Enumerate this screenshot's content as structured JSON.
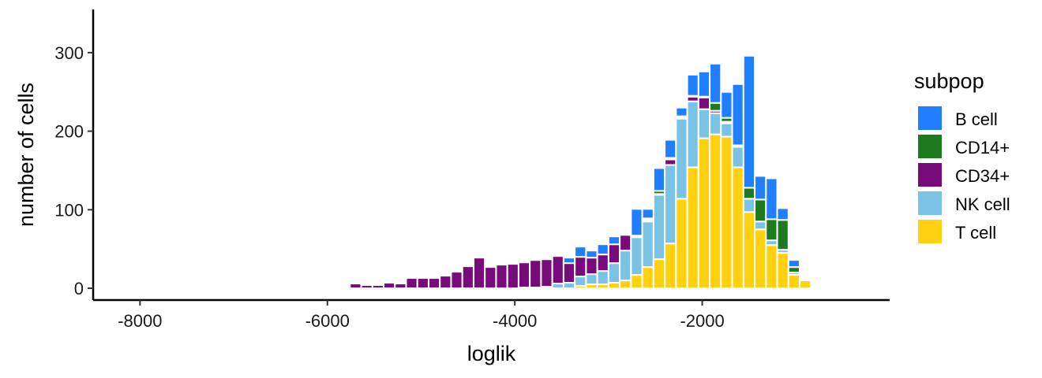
{
  "chart_data": {
    "type": "bar",
    "stacked": true,
    "xlabel": "loglik",
    "ylabel": "number of cells",
    "xlim": [
      -8500,
      0
    ],
    "ylim": [
      -15,
      355
    ],
    "xticks": [
      -8000,
      -6000,
      -4000,
      -2000
    ],
    "xtick_labels": [
      "-8000",
      "-6000",
      "-4000",
      "-2000"
    ],
    "yticks": [
      0,
      100,
      200,
      300
    ],
    "ytick_labels": [
      "0",
      "100",
      "200",
      "300"
    ],
    "bin_width": 120,
    "x": [
      -5820,
      -5700,
      -5580,
      -5460,
      -5340,
      -5220,
      -5100,
      -4980,
      -4860,
      -4740,
      -4620,
      -4500,
      -4380,
      -4260,
      -4140,
      -4020,
      -3900,
      -3780,
      -3660,
      -3540,
      -3420,
      -3300,
      -3180,
      -3060,
      -2940,
      -2820,
      -2700,
      -2580,
      -2460,
      -2340,
      -2220,
      -2100,
      -1980,
      -1860,
      -1740,
      -1620,
      -1500,
      -1380,
      -1260,
      -1140,
      -1020,
      -900
    ],
    "series": [
      {
        "name": "T cell",
        "color": "#FFD10F",
        "values": [
          0,
          0,
          0,
          0,
          0,
          0,
          0,
          0,
          0,
          0,
          0,
          0,
          0,
          0,
          0,
          0,
          0,
          0,
          0,
          0,
          0,
          3,
          5,
          5,
          7,
          10,
          17,
          27,
          37,
          57,
          114,
          154,
          191,
          196,
          193,
          154,
          97,
          75,
          55,
          45,
          17,
          10
        ]
      },
      {
        "name": "NK cell",
        "color": "#7BC3E5",
        "values": [
          0,
          0,
          0,
          0,
          0,
          0,
          0,
          0,
          0,
          0,
          0,
          0,
          0,
          0,
          0,
          0,
          1,
          1,
          2,
          6,
          7,
          12,
          13,
          17,
          25,
          38,
          48,
          58,
          82,
          100,
          102,
          84,
          37,
          27,
          17,
          26,
          17,
          10,
          6,
          4,
          3,
          2
        ]
      },
      {
        "name": "CD34+",
        "color": "#760B79",
        "values": [
          2,
          6,
          4,
          4,
          7,
          6,
          13,
          13,
          13,
          16,
          21,
          28,
          39,
          27,
          30,
          31,
          32,
          35,
          35,
          35,
          25,
          25,
          21,
          21,
          24,
          20,
          2,
          2,
          1,
          7,
          2,
          6,
          15,
          3,
          2,
          0,
          0,
          0,
          0,
          0,
          0,
          0
        ]
      },
      {
        "name": "CD14+",
        "color": "#1E7A1E",
        "values": [
          0,
          0,
          0,
          0,
          0,
          0,
          0,
          0,
          0,
          0,
          0,
          0,
          0,
          0,
          0,
          0,
          0,
          1,
          1,
          0,
          0,
          0,
          0,
          0,
          0,
          0,
          0,
          2,
          4,
          2,
          1,
          1,
          1,
          10,
          5,
          2,
          14,
          28,
          27,
          38,
          7,
          2
        ]
      },
      {
        "name": "B cell",
        "color": "#1F7FFF",
        "values": [
          0,
          0,
          0,
          0,
          0,
          0,
          0,
          0,
          0,
          0,
          0,
          0,
          0,
          0,
          0,
          0,
          1,
          0,
          0,
          0,
          7,
          13,
          9,
          13,
          10,
          1,
          34,
          12,
          29,
          23,
          11,
          27,
          32,
          50,
          33,
          78,
          168,
          30,
          52,
          15,
          9,
          2
        ]
      }
    ],
    "legend": {
      "title": "subpop",
      "position": "right",
      "entries": [
        {
          "label": "B cell",
          "color": "#1F7FFF"
        },
        {
          "label": "CD14+",
          "color": "#1E7A1E"
        },
        {
          "label": "CD34+",
          "color": "#760B79"
        },
        {
          "label": "NK cell",
          "color": "#7BC3E5"
        },
        {
          "label": "T cell",
          "color": "#FFD10F"
        }
      ]
    },
    "grid": false
  }
}
